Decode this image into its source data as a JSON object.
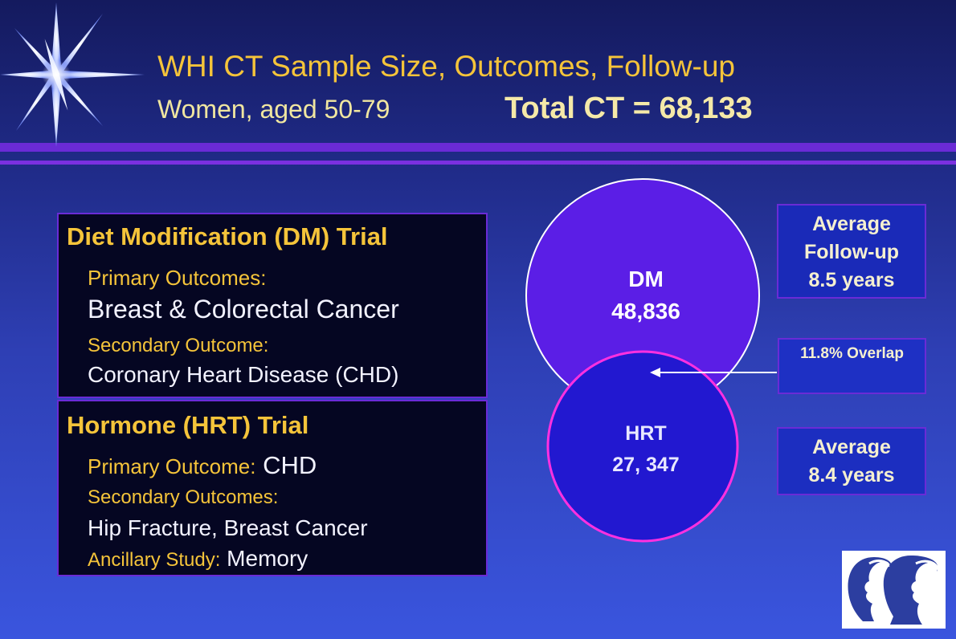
{
  "header": {
    "title": "WHI CT Sample Size, Outcomes, Follow-up",
    "subtitle": "Women, aged 50-79",
    "total": "Total CT = 68,133"
  },
  "dm_panel": {
    "title": "Diet Modification (DM) Trial",
    "primary_label": "Primary Outcomes:",
    "primary_value": "Breast & Colorectal Cancer",
    "secondary_label": "Secondary Outcome:",
    "secondary_value": "Coronary Heart Disease (CHD)"
  },
  "hrt_panel": {
    "title": "Hormone (HRT) Trial",
    "primary_label": "Primary Outcome:",
    "primary_value": " CHD",
    "secondary_label": "Secondary Outcomes:",
    "secondary_value": "Hip Fracture, Breast Cancer",
    "ancillary_label": "Ancillary Study:",
    "ancillary_value": " Memory"
  },
  "venn": {
    "dm_label": "DM",
    "dm_count": "48,836",
    "hrt_label": "HRT",
    "hrt_count": "27, 347"
  },
  "followup_dm": {
    "line1": "Average",
    "line2": "Follow-up",
    "line3": "8.5 years"
  },
  "overlap": {
    "text": "11.8% Overlap"
  },
  "followup_hrt": {
    "line1": "Average",
    "line2": "8.4 years"
  },
  "colors": {
    "gold": "#f5c43a",
    "dm_circle": "#5b1ee6",
    "hrt_circle": "#2218d0",
    "hrt_border": "#ff30e0",
    "band": "#6a2bd6"
  },
  "icons": {
    "star": "star-burst-icon",
    "logo": "whi-women-profiles-logo"
  }
}
